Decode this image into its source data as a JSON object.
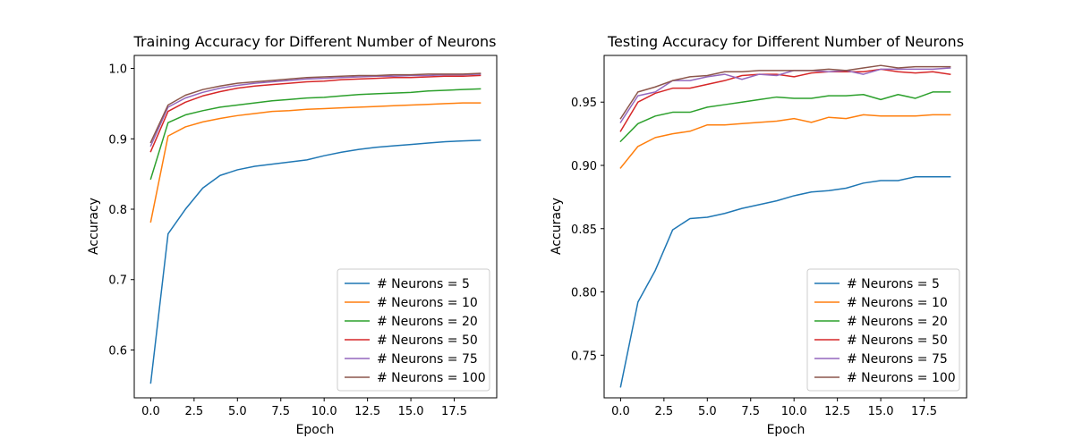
{
  "chart_data": [
    {
      "type": "line",
      "title": "Training Accuracy for Different Number of Neurons",
      "xlabel": "Epoch",
      "ylabel": "Accuracy",
      "xlim": [
        -0.95,
        19.95
      ],
      "ylim": [
        0.532,
        1.0185
      ],
      "xticks": [
        0.0,
        2.5,
        5.0,
        7.5,
        10.0,
        12.5,
        15.0,
        17.5
      ],
      "yticks": [
        0.6,
        0.7,
        0.8,
        0.9,
        1.0
      ],
      "grid": false,
      "legend_position": "lower right",
      "x": [
        0,
        1,
        2,
        3,
        4,
        5,
        6,
        7,
        8,
        9,
        10,
        11,
        12,
        13,
        14,
        15,
        16,
        17,
        18,
        19
      ],
      "series": [
        {
          "name": "# Neurons = 5",
          "color": "#1f77b4",
          "values": [
            0.553,
            0.765,
            0.8,
            0.83,
            0.848,
            0.856,
            0.861,
            0.864,
            0.867,
            0.87,
            0.876,
            0.881,
            0.885,
            0.888,
            0.89,
            0.892,
            0.894,
            0.896,
            0.897,
            0.898
          ]
        },
        {
          "name": "# Neurons = 10",
          "color": "#ff7f0e",
          "values": [
            0.782,
            0.904,
            0.917,
            0.924,
            0.929,
            0.933,
            0.936,
            0.939,
            0.94,
            0.942,
            0.943,
            0.944,
            0.945,
            0.946,
            0.947,
            0.948,
            0.949,
            0.95,
            0.951,
            0.951
          ]
        },
        {
          "name": "# Neurons = 20",
          "color": "#2ca02c",
          "values": [
            0.843,
            0.923,
            0.934,
            0.94,
            0.945,
            0.948,
            0.951,
            0.954,
            0.956,
            0.958,
            0.959,
            0.961,
            0.963,
            0.964,
            0.965,
            0.966,
            0.968,
            0.969,
            0.97,
            0.971
          ]
        },
        {
          "name": "# Neurons = 50",
          "color": "#d62728",
          "values": [
            0.882,
            0.939,
            0.952,
            0.961,
            0.967,
            0.972,
            0.975,
            0.977,
            0.979,
            0.981,
            0.982,
            0.984,
            0.985,
            0.986,
            0.987,
            0.987,
            0.988,
            0.989,
            0.989,
            0.99
          ]
        },
        {
          "name": "# Neurons = 75",
          "color": "#9467bd",
          "values": [
            0.89,
            0.945,
            0.958,
            0.966,
            0.972,
            0.976,
            0.979,
            0.981,
            0.983,
            0.985,
            0.986,
            0.987,
            0.988,
            0.989,
            0.989,
            0.99,
            0.99,
            0.991,
            0.991,
            0.992
          ]
        },
        {
          "name": "# Neurons = 100",
          "color": "#8c564b",
          "values": [
            0.895,
            0.948,
            0.962,
            0.97,
            0.975,
            0.979,
            0.981,
            0.983,
            0.985,
            0.987,
            0.988,
            0.989,
            0.99,
            0.99,
            0.991,
            0.991,
            0.992,
            0.992,
            0.992,
            0.993
          ]
        }
      ]
    },
    {
      "type": "line",
      "title": "Testing Accuracy for Different Number of Neurons",
      "xlabel": "Epoch",
      "ylabel": "Accuracy",
      "xlim": [
        -0.95,
        19.95
      ],
      "ylim": [
        0.7163,
        0.9869
      ],
      "xticks": [
        0.0,
        2.5,
        5.0,
        7.5,
        10.0,
        12.5,
        15.0,
        17.5
      ],
      "yticks": [
        0.75,
        0.8,
        0.85,
        0.9,
        0.95
      ],
      "grid": false,
      "legend_position": "lower right",
      "x": [
        0,
        1,
        2,
        3,
        4,
        5,
        6,
        7,
        8,
        9,
        10,
        11,
        12,
        13,
        14,
        15,
        16,
        17,
        18,
        19
      ],
      "series": [
        {
          "name": "# Neurons = 5",
          "color": "#1f77b4",
          "values": [
            0.725,
            0.792,
            0.817,
            0.849,
            0.858,
            0.859,
            0.862,
            0.866,
            0.869,
            0.872,
            0.876,
            0.879,
            0.88,
            0.882,
            0.886,
            0.888,
            0.888,
            0.891,
            0.891,
            0.891
          ]
        },
        {
          "name": "# Neurons = 10",
          "color": "#ff7f0e",
          "values": [
            0.898,
            0.915,
            0.922,
            0.925,
            0.927,
            0.932,
            0.932,
            0.933,
            0.934,
            0.935,
            0.937,
            0.934,
            0.938,
            0.937,
            0.94,
            0.939,
            0.939,
            0.939,
            0.94,
            0.94
          ]
        },
        {
          "name": "# Neurons = 20",
          "color": "#2ca02c",
          "values": [
            0.919,
            0.933,
            0.939,
            0.942,
            0.942,
            0.946,
            0.948,
            0.95,
            0.952,
            0.954,
            0.953,
            0.953,
            0.955,
            0.955,
            0.956,
            0.952,
            0.956,
            0.953,
            0.958,
            0.958
          ]
        },
        {
          "name": "# Neurons = 50",
          "color": "#d62728",
          "values": [
            0.927,
            0.95,
            0.957,
            0.961,
            0.961,
            0.964,
            0.967,
            0.971,
            0.972,
            0.972,
            0.97,
            0.973,
            0.974,
            0.974,
            0.974,
            0.976,
            0.974,
            0.973,
            0.974,
            0.972
          ]
        },
        {
          "name": "# Neurons = 75",
          "color": "#9467bd",
          "values": [
            0.934,
            0.955,
            0.958,
            0.967,
            0.967,
            0.97,
            0.972,
            0.968,
            0.972,
            0.971,
            0.975,
            0.975,
            0.974,
            0.975,
            0.972,
            0.976,
            0.976,
            0.976,
            0.976,
            0.977
          ]
        },
        {
          "name": "# Neurons = 100",
          "color": "#8c564b",
          "values": [
            0.937,
            0.958,
            0.962,
            0.967,
            0.97,
            0.971,
            0.974,
            0.974,
            0.975,
            0.975,
            0.975,
            0.975,
            0.976,
            0.975,
            0.977,
            0.979,
            0.977,
            0.978,
            0.978,
            0.978
          ]
        }
      ]
    }
  ]
}
